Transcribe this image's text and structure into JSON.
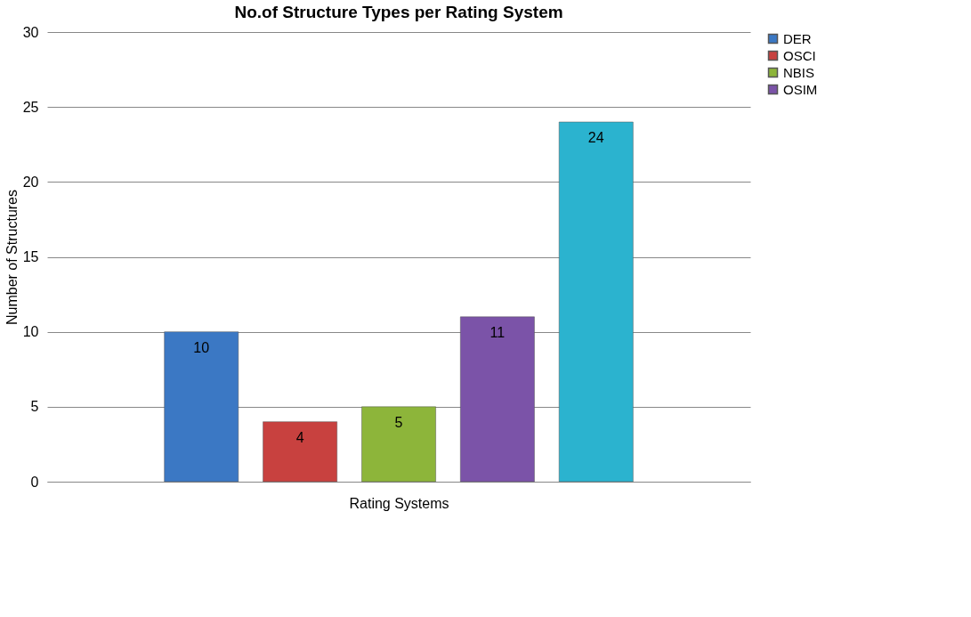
{
  "chart_data": {
    "type": "bar",
    "title": "No.of Structure Types per Rating System",
    "xlabel": "Rating Systems",
    "ylabel": "Number of Structures",
    "categories": [
      null
    ],
    "series": [
      {
        "name": "DER",
        "color": "#3b78c4",
        "values": [
          10
        ]
      },
      {
        "name": "OSCI",
        "color": "#c8413f",
        "values": [
          4
        ]
      },
      {
        "name": "NBIS",
        "color": "#8db53a",
        "values": [
          5
        ]
      },
      {
        "name": "OSIM",
        "color": "#7b53a8",
        "values": [
          11
        ]
      },
      {
        "color": "#2bb3cf",
        "values": [
          24
        ]
      }
    ],
    "ylim": [
      0,
      30
    ],
    "yticks": [
      0,
      5,
      10,
      15,
      20,
      25,
      30
    ],
    "grid": "y",
    "legend": "right",
    "data_labels": true
  }
}
